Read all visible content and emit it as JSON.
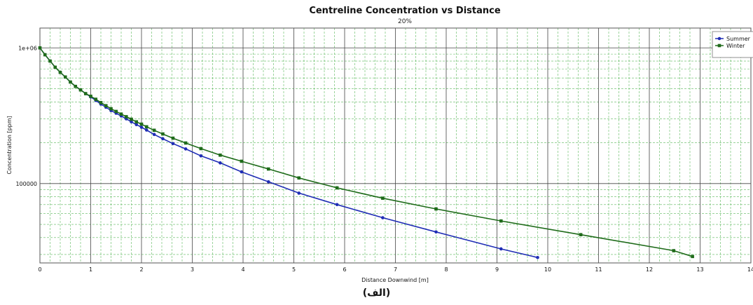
{
  "caption": "(الف)",
  "chart_data": {
    "type": "line",
    "title": "Centreline Concentration vs Distance",
    "subtitle": "20%",
    "xlabel": "Distance Downwind [m]",
    "ylabel": "Concentration [ppm]",
    "xlim": [
      0,
      14
    ],
    "ylim": [
      26000,
      1400000
    ],
    "y_scale": "log",
    "x_ticks": [
      0,
      1,
      2,
      3,
      4,
      5,
      6,
      7,
      8,
      9,
      10,
      11,
      12,
      13,
      14
    ],
    "x_tick_labels": [
      "0",
      "1",
      "2",
      "3",
      "4",
      "5",
      "6",
      "7",
      "8",
      "9",
      "10",
      "11",
      "12",
      "13",
      "14"
    ],
    "y_ticks": [
      100000,
      1000000
    ],
    "y_tick_labels": [
      "100000",
      "1e+06"
    ],
    "grid": true,
    "legend_position": "top-right",
    "series": [
      {
        "name": "Summer",
        "color": "#1f2db5",
        "marker": "circle",
        "x": [
          0,
          0.1,
          0.2,
          0.3,
          0.4,
          0.5,
          0.6,
          0.7,
          0.8,
          0.9,
          1.0,
          1.1,
          1.2,
          1.3,
          1.4,
          1.5,
          1.6,
          1.7,
          1.8,
          1.9,
          2.0,
          2.1,
          2.25,
          2.42,
          2.62,
          2.87,
          3.17,
          3.55,
          3.97,
          4.5,
          5.1,
          5.85,
          6.75,
          7.8,
          9.08,
          9.8
        ],
        "y": [
          1000000,
          890000,
          800000,
          720000,
          660000,
          610000,
          560000,
          520000,
          490000,
          460000,
          435000,
          410000,
          385000,
          365000,
          345000,
          330000,
          315000,
          300000,
          285000,
          272000,
          260000,
          248000,
          230000,
          214000,
          197000,
          180000,
          160000,
          142000,
          122000,
          103000,
          85000,
          70000,
          56000,
          44000,
          33000,
          28500
        ]
      },
      {
        "name": "Winter",
        "color": "#1f6b1a",
        "marker": "square",
        "x": [
          0,
          0.1,
          0.2,
          0.3,
          0.4,
          0.5,
          0.6,
          0.7,
          0.8,
          0.9,
          1.0,
          1.1,
          1.2,
          1.3,
          1.4,
          1.5,
          1.6,
          1.7,
          1.8,
          1.9,
          2.0,
          2.1,
          2.25,
          2.42,
          2.62,
          2.87,
          3.17,
          3.55,
          3.97,
          4.5,
          5.1,
          5.85,
          6.75,
          7.8,
          9.08,
          10.65,
          12.48,
          12.85
        ],
        "y": [
          1000000,
          890000,
          800000,
          720000,
          660000,
          610000,
          560000,
          520000,
          490000,
          460000,
          440000,
          418000,
          395000,
          375000,
          356000,
          340000,
          325000,
          311000,
          298000,
          285000,
          274000,
          262000,
          247000,
          232000,
          216000,
          199000,
          181000,
          162000,
          146000,
          128000,
          110000,
          93000,
          78000,
          65000,
          53000,
          42000,
          32000,
          29000
        ]
      }
    ]
  }
}
